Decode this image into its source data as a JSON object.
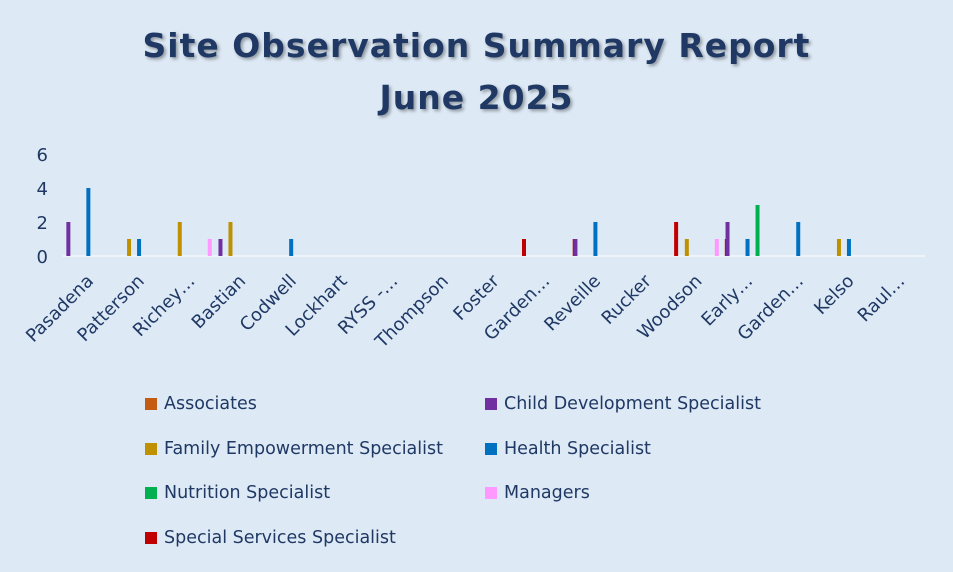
{
  "chart_data": {
    "type": "bar",
    "title_line1": "Site Observation Summary Report",
    "title_line2": "June 2025",
    "ylim": [
      0,
      6
    ],
    "yticks": [
      0,
      2,
      4,
      6
    ],
    "categories": [
      "Pasadena",
      "Patterson",
      "Richey…",
      "Bastian",
      "Codwell",
      "Lockhart",
      "RYSS -…",
      "Thompson",
      "Foster",
      "Garden…",
      "Reveille",
      "Rucker",
      "Woodson",
      "Early…",
      "Garden…",
      "Kelso",
      "Raul…"
    ],
    "series": [
      {
        "name": "Associates",
        "color": "#c55a11",
        "values": [
          0,
          0,
          0,
          0,
          0,
          0,
          0,
          0,
          0,
          0,
          0,
          0,
          0,
          0,
          0,
          0,
          0
        ]
      },
      {
        "name": "Child Development Specialist",
        "color": "#7030a0",
        "values": [
          2,
          0,
          0,
          1,
          0,
          0,
          0,
          0,
          0,
          0,
          1,
          0,
          0,
          2,
          0,
          0,
          0
        ]
      },
      {
        "name": "Family Empowerment Specialist",
        "color": "#bf9000",
        "values": [
          0,
          1,
          2,
          2,
          0,
          0,
          0,
          0,
          0,
          0,
          0,
          0,
          1,
          0,
          0,
          1,
          0
        ]
      },
      {
        "name": "Health Specialist",
        "color": "#0070c0",
        "values": [
          4,
          1,
          0,
          0,
          1,
          0,
          0,
          0,
          0,
          0,
          2,
          0,
          0,
          1,
          2,
          1,
          0
        ]
      },
      {
        "name": "Nutrition Specialist",
        "color": "#00b050",
        "values": [
          0,
          0,
          0,
          0,
          0,
          0,
          0,
          0,
          0,
          0,
          0,
          0,
          0,
          3,
          0,
          0,
          0
        ]
      },
      {
        "name": "Managers",
        "color": "#ff99ff",
        "values": [
          0,
          0,
          1,
          0,
          0,
          0,
          0,
          0,
          0,
          0,
          0,
          0,
          1,
          0,
          0,
          0,
          0
        ]
      },
      {
        "name": "Special Services Specialist",
        "color": "#c00000",
        "values": [
          0,
          0,
          0,
          0,
          0,
          0,
          0,
          0,
          1,
          1,
          0,
          2,
          1,
          0,
          0,
          0,
          0
        ]
      }
    ],
    "legend_position": "bottom",
    "grid": false
  }
}
